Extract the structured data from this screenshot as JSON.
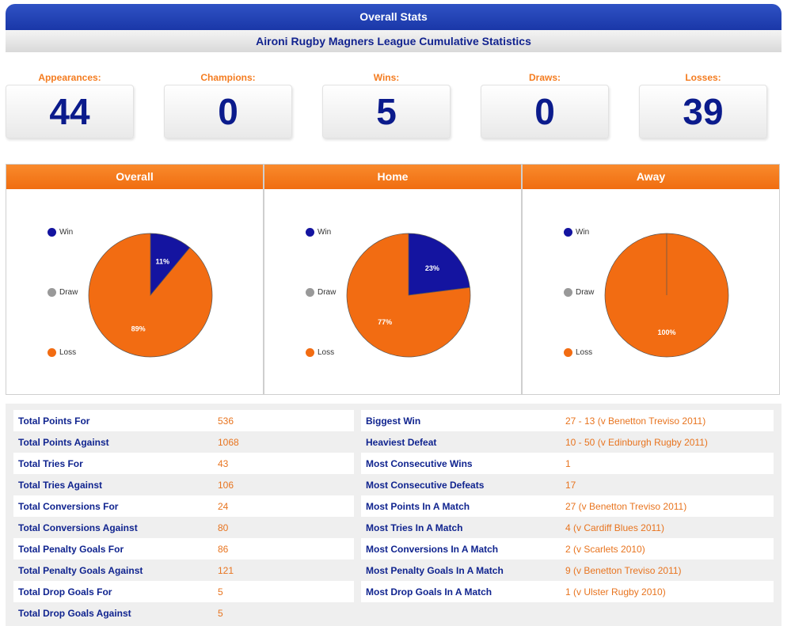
{
  "title": "Overall Stats",
  "subtitle": "Aironi Rugby Magners League Cumulative Statistics",
  "summary": [
    {
      "label": "Appearances:",
      "value": "44"
    },
    {
      "label": "Champions:",
      "value": "0"
    },
    {
      "label": "Wins:",
      "value": "5"
    },
    {
      "label": "Draws:",
      "value": "0"
    },
    {
      "label": "Losses:",
      "value": "39"
    }
  ],
  "legend": [
    {
      "label": "Win",
      "color": "#1414a0"
    },
    {
      "label": "Draw",
      "color": "#999999"
    },
    {
      "label": "Loss",
      "color": "#f26c12"
    }
  ],
  "chart_data": [
    {
      "type": "pie",
      "title": "Overall",
      "labels": [
        "Win",
        "Draw",
        "Loss"
      ],
      "values": [
        11,
        0,
        89
      ],
      "value_labels": [
        "11%",
        "",
        "89%"
      ]
    },
    {
      "type": "pie",
      "title": "Home",
      "labels": [
        "Win",
        "Draw",
        "Loss"
      ],
      "values": [
        23,
        0,
        77
      ],
      "value_labels": [
        "23%",
        "",
        "77%"
      ]
    },
    {
      "type": "pie",
      "title": "Away",
      "labels": [
        "Win",
        "Draw",
        "Loss"
      ],
      "values": [
        0,
        0,
        100
      ],
      "value_labels": [
        "",
        "",
        "100%"
      ]
    }
  ],
  "left_table": [
    {
      "label": "Total Points For",
      "value": "536"
    },
    {
      "label": "Total Points Against",
      "value": "1068"
    },
    {
      "label": "Total Tries For",
      "value": "43"
    },
    {
      "label": "Total Tries Against",
      "value": "106"
    },
    {
      "label": "Total Conversions For",
      "value": "24"
    },
    {
      "label": "Total Conversions Against",
      "value": "80"
    },
    {
      "label": "Total Penalty Goals For",
      "value": "86"
    },
    {
      "label": "Total Penalty Goals Against",
      "value": "121"
    },
    {
      "label": "Total Drop Goals For",
      "value": "5"
    },
    {
      "label": "Total Drop Goals Against",
      "value": "5"
    }
  ],
  "right_table": [
    {
      "label": "Biggest Win",
      "value": "27 - 13 (v Benetton Treviso 2011)"
    },
    {
      "label": "Heaviest Defeat",
      "value": "10 - 50 (v Edinburgh Rugby 2011)"
    },
    {
      "label": "Most Consecutive Wins",
      "value": "1"
    },
    {
      "label": "Most Consecutive Defeats",
      "value": "17"
    },
    {
      "label": "Most Points In A Match",
      "value": "27 (v Benetton Treviso 2011)"
    },
    {
      "label": "Most Tries In A Match",
      "value": "4 (v Cardiff Blues 2011)"
    },
    {
      "label": "Most Conversions In A Match",
      "value": "2 (v Scarlets 2010)"
    },
    {
      "label": "Most Penalty Goals In A Match",
      "value": "9 (v Benetton Treviso 2011)"
    },
    {
      "label": "Most Drop Goals In A Match",
      "value": "1 (v Ulster Rugby 2010)"
    }
  ]
}
